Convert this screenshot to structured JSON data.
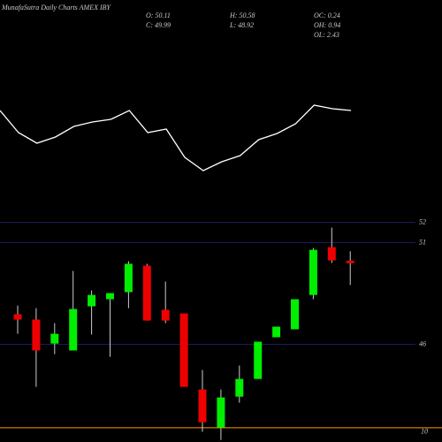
{
  "header": {
    "title": "MunafaSutra Daily Charts AMEX IBY",
    "stats": [
      [
        "O: 50.11",
        "C: 49.99"
      ],
      [
        "H: 50.58",
        "L: 48.92"
      ],
      [
        "OC: 0.24",
        "OH: 0.94",
        "OL: 2.43"
      ]
    ]
  },
  "chart_data": [
    {
      "type": "line",
      "color": "#ffffff",
      "ylim": [
        0,
        100
      ],
      "values": [
        75,
        50,
        38,
        45,
        57,
        62,
        65,
        75,
        50,
        54,
        22,
        7,
        17,
        24,
        42,
        49,
        60,
        81,
        77,
        75
      ]
    },
    {
      "type": "candlestick",
      "up_color": "#00ee00",
      "down_color": "#ee0000",
      "grid_color": "#1c1c5a",
      "categories": [
        null,
        null,
        null,
        null,
        null,
        null,
        null,
        null,
        null,
        null,
        null,
        null,
        null,
        null,
        null,
        null,
        null,
        null,
        null
      ],
      "open": [
        47.48,
        47.22,
        46.04,
        45.7,
        47.87,
        48.22,
        48.57,
        49.87,
        47.7,
        47.52,
        43.78,
        41.91,
        43.43,
        44.3,
        46.35,
        46.74,
        48.43,
        50.78,
        50.11
      ],
      "high": [
        47.91,
        47.78,
        47.04,
        49.61,
        48.65,
        48.52,
        50.09,
        49.96,
        49.09,
        47.52,
        44.74,
        43.78,
        44.96,
        46.13,
        46.87,
        48.22,
        50.74,
        51.74,
        50.58
      ],
      "low": [
        46.52,
        43.91,
        45.52,
        45.7,
        46.48,
        45.39,
        47.78,
        47.17,
        47.04,
        43.91,
        41.7,
        41.3,
        43.13,
        44.3,
        46.35,
        46.74,
        48.22,
        50.0,
        48.92
      ],
      "close": [
        47.22,
        45.7,
        46.52,
        47.74,
        48.43,
        48.52,
        49.96,
        47.17,
        47.17,
        43.91,
        42.17,
        43.39,
        44.3,
        46.13,
        46.87,
        48.22,
        50.65,
        50.13,
        49.99
      ],
      "ylim": [
        41.2,
        52.5
      ],
      "yticks": [
        52,
        51,
        46
      ],
      "reference_line": {
        "value": 41.9,
        "label": "10",
        "color": "#ff9900"
      }
    }
  ]
}
